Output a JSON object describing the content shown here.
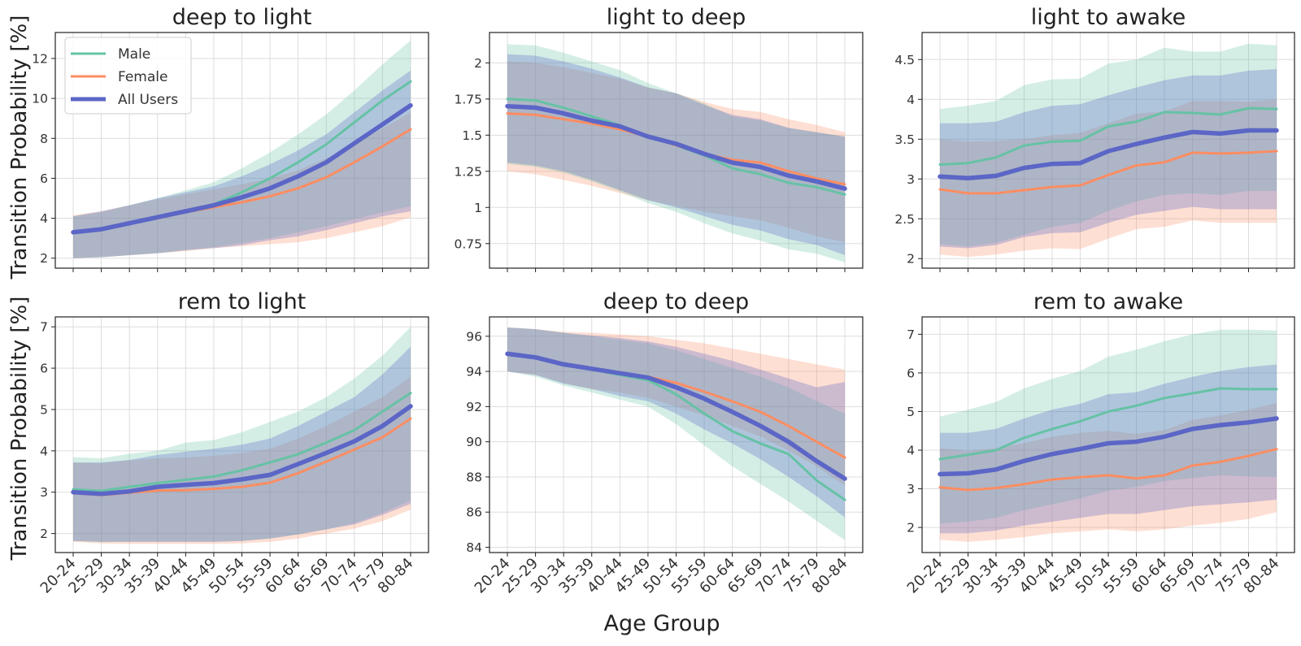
{
  "figure": {
    "ylabel": "Transition Probability [%]",
    "xlabel": "Age Group"
  },
  "colors": {
    "male": "#66c2a5",
    "female": "#fc8d62",
    "all": "#5b66c6"
  },
  "legend": {
    "placement": "upper-left of first panel",
    "entries": [
      {
        "key": "male",
        "label": "Male"
      },
      {
        "key": "female",
        "label": "Female"
      },
      {
        "key": "all",
        "label": "All Users"
      }
    ]
  },
  "chart_data": [
    {
      "type": "line",
      "title": "deep to light",
      "categories": [
        "20-24",
        "25-29",
        "30-34",
        "35-39",
        "40-44",
        "45-49",
        "50-54",
        "55-59",
        "60-64",
        "65-69",
        "70-74",
        "75-79",
        "80-84"
      ],
      "ylim": [
        1.5,
        13.3
      ],
      "yticks": [
        2,
        4,
        6,
        8,
        10,
        12
      ],
      "grid": true,
      "series": [
        {
          "name": "Male",
          "key": "male",
          "values": [
            3.3,
            3.45,
            3.75,
            4.05,
            4.35,
            4.7,
            5.3,
            6.0,
            6.8,
            7.7,
            8.8,
            9.9,
            10.85
          ],
          "lower": [
            2.0,
            2.05,
            2.15,
            2.25,
            2.4,
            2.55,
            2.75,
            3.0,
            3.3,
            3.6,
            3.95,
            4.3,
            4.6
          ],
          "upper": [
            4.1,
            4.3,
            4.65,
            5.0,
            5.4,
            5.8,
            6.5,
            7.3,
            8.2,
            9.2,
            10.4,
            11.7,
            12.9
          ]
        },
        {
          "name": "Female",
          "key": "female",
          "values": [
            3.3,
            3.45,
            3.75,
            4.0,
            4.3,
            4.55,
            4.8,
            5.1,
            5.5,
            6.05,
            6.8,
            7.6,
            8.45
          ],
          "lower": [
            2.0,
            2.05,
            2.15,
            2.25,
            2.35,
            2.5,
            2.6,
            2.7,
            2.8,
            3.0,
            3.3,
            3.6,
            4.05
          ],
          "upper": [
            4.15,
            4.35,
            4.65,
            4.95,
            5.2,
            5.45,
            5.7,
            6.0,
            6.4,
            7.0,
            7.7,
            8.5,
            9.3
          ]
        },
        {
          "name": "All Users",
          "key": "all",
          "values": [
            3.3,
            3.45,
            3.75,
            4.05,
            4.35,
            4.65,
            5.05,
            5.5,
            6.1,
            6.8,
            7.75,
            8.7,
            9.65
          ],
          "lower": [
            2.0,
            2.05,
            2.15,
            2.25,
            2.4,
            2.5,
            2.65,
            2.9,
            3.1,
            3.4,
            3.75,
            4.1,
            4.35
          ],
          "upper": [
            4.1,
            4.35,
            4.65,
            5.0,
            5.3,
            5.6,
            6.1,
            6.7,
            7.4,
            8.2,
            9.3,
            10.4,
            11.4
          ]
        }
      ]
    },
    {
      "type": "line",
      "title": "light to deep",
      "categories": [
        "20-24",
        "25-29",
        "30-34",
        "35-39",
        "40-44",
        "45-49",
        "50-54",
        "55-59",
        "60-64",
        "65-69",
        "70-74",
        "75-79",
        "80-84"
      ],
      "ylim": [
        0.58,
        2.21
      ],
      "yticks": [
        0.75,
        1.0,
        1.25,
        1.5,
        1.75,
        2.0
      ],
      "grid": true,
      "series": [
        {
          "name": "Male",
          "key": "male",
          "values": [
            1.75,
            1.74,
            1.69,
            1.63,
            1.57,
            1.49,
            1.43,
            1.36,
            1.27,
            1.23,
            1.17,
            1.14,
            1.09
          ],
          "lower": [
            1.3,
            1.28,
            1.24,
            1.18,
            1.11,
            1.03,
            0.97,
            0.89,
            0.82,
            0.77,
            0.71,
            0.68,
            0.62
          ],
          "upper": [
            2.13,
            2.12,
            2.07,
            2.01,
            1.95,
            1.86,
            1.79,
            1.72,
            1.63,
            1.6,
            1.55,
            1.52,
            1.49
          ]
        },
        {
          "name": "Female",
          "key": "female",
          "values": [
            1.65,
            1.64,
            1.61,
            1.58,
            1.54,
            1.49,
            1.43,
            1.37,
            1.33,
            1.31,
            1.25,
            1.2,
            1.16
          ],
          "lower": [
            1.25,
            1.23,
            1.19,
            1.15,
            1.1,
            1.05,
            1.01,
            0.97,
            0.94,
            0.91,
            0.86,
            0.8,
            0.76
          ],
          "upper": [
            2.01,
            2.0,
            1.97,
            1.93,
            1.89,
            1.83,
            1.79,
            1.73,
            1.68,
            1.66,
            1.61,
            1.57,
            1.52
          ]
        },
        {
          "name": "All Users",
          "key": "all",
          "values": [
            1.7,
            1.69,
            1.65,
            1.6,
            1.56,
            1.49,
            1.44,
            1.37,
            1.31,
            1.28,
            1.22,
            1.18,
            1.13
          ],
          "lower": [
            1.31,
            1.29,
            1.25,
            1.19,
            1.12,
            1.05,
            1.0,
            0.94,
            0.88,
            0.84,
            0.78,
            0.74,
            0.67
          ],
          "upper": [
            2.06,
            2.05,
            2.01,
            1.96,
            1.9,
            1.83,
            1.79,
            1.71,
            1.64,
            1.61,
            1.55,
            1.52,
            1.49
          ]
        }
      ]
    },
    {
      "type": "line",
      "title": "light to awake",
      "categories": [
        "20-24",
        "25-29",
        "30-34",
        "35-39",
        "40-44",
        "45-49",
        "50-54",
        "55-59",
        "60-64",
        "65-69",
        "70-74",
        "75-79",
        "80-84"
      ],
      "ylim": [
        1.88,
        4.84
      ],
      "yticks": [
        2.0,
        2.5,
        3.0,
        3.5,
        4.0,
        4.5
      ],
      "grid": true,
      "series": [
        {
          "name": "Male",
          "key": "male",
          "values": [
            3.18,
            3.2,
            3.27,
            3.42,
            3.47,
            3.48,
            3.66,
            3.72,
            3.84,
            3.83,
            3.81,
            3.89,
            3.88
          ],
          "lower": [
            2.18,
            2.15,
            2.2,
            2.3,
            2.4,
            2.45,
            2.6,
            2.72,
            2.8,
            2.82,
            2.8,
            2.85,
            2.85
          ],
          "upper": [
            3.88,
            3.92,
            3.98,
            4.18,
            4.25,
            4.26,
            4.45,
            4.5,
            4.65,
            4.6,
            4.6,
            4.7,
            4.68
          ]
        },
        {
          "name": "Female",
          "key": "female",
          "values": [
            2.87,
            2.82,
            2.82,
            2.86,
            2.9,
            2.92,
            3.05,
            3.17,
            3.21,
            3.33,
            3.32,
            3.33,
            3.35
          ],
          "lower": [
            2.05,
            2.02,
            2.05,
            2.1,
            2.13,
            2.12,
            2.25,
            2.37,
            2.4,
            2.48,
            2.45,
            2.45,
            2.45
          ],
          "upper": [
            3.5,
            3.47,
            3.48,
            3.5,
            3.55,
            3.58,
            3.7,
            3.82,
            3.85,
            3.98,
            3.98,
            3.97,
            4.0
          ]
        },
        {
          "name": "All Users",
          "key": "all",
          "values": [
            3.03,
            3.01,
            3.04,
            3.14,
            3.19,
            3.2,
            3.35,
            3.44,
            3.52,
            3.59,
            3.57,
            3.61,
            3.61
          ],
          "lower": [
            2.15,
            2.13,
            2.17,
            2.27,
            2.32,
            2.33,
            2.45,
            2.55,
            2.6,
            2.65,
            2.62,
            2.62,
            2.62
          ],
          "upper": [
            3.7,
            3.7,
            3.72,
            3.84,
            3.92,
            3.94,
            4.05,
            4.15,
            4.24,
            4.3,
            4.3,
            4.36,
            4.38
          ]
        }
      ]
    },
    {
      "type": "line",
      "title": "rem to light",
      "categories": [
        "20-24",
        "25-29",
        "30-34",
        "35-39",
        "40-44",
        "45-49",
        "50-54",
        "55-59",
        "60-64",
        "65-69",
        "70-74",
        "75-79",
        "80-84"
      ],
      "ylim": [
        1.54,
        7.24
      ],
      "yticks": [
        2,
        3,
        4,
        5,
        6,
        7
      ],
      "grid": true,
      "series": [
        {
          "name": "Male",
          "key": "male",
          "values": [
            3.07,
            3.03,
            3.13,
            3.22,
            3.3,
            3.38,
            3.53,
            3.72,
            3.92,
            4.2,
            4.5,
            4.95,
            5.4
          ],
          "lower": [
            1.82,
            1.79,
            1.8,
            1.8,
            1.8,
            1.8,
            1.82,
            1.88,
            1.98,
            2.1,
            2.25,
            2.5,
            2.8
          ],
          "upper": [
            3.85,
            3.82,
            3.93,
            4.0,
            4.2,
            4.26,
            4.45,
            4.7,
            4.95,
            5.3,
            5.75,
            6.3,
            7.0
          ]
        },
        {
          "name": "Female",
          "key": "female",
          "values": [
            2.98,
            2.93,
            2.99,
            3.04,
            3.05,
            3.08,
            3.13,
            3.23,
            3.46,
            3.74,
            4.03,
            4.33,
            4.78
          ],
          "lower": [
            1.8,
            1.76,
            1.75,
            1.75,
            1.75,
            1.75,
            1.76,
            1.8,
            1.88,
            2.0,
            2.12,
            2.3,
            2.58
          ],
          "upper": [
            3.72,
            3.7,
            3.77,
            3.82,
            3.84,
            3.88,
            3.95,
            4.05,
            4.3,
            4.6,
            4.95,
            5.3,
            5.8
          ]
        },
        {
          "name": "All Users",
          "key": "all",
          "values": [
            3.0,
            2.96,
            3.02,
            3.13,
            3.18,
            3.22,
            3.31,
            3.42,
            3.68,
            3.95,
            4.23,
            4.6,
            5.08
          ],
          "lower": [
            1.82,
            1.8,
            1.8,
            1.8,
            1.8,
            1.8,
            1.82,
            1.88,
            1.98,
            2.1,
            2.22,
            2.45,
            2.72
          ],
          "upper": [
            3.72,
            3.72,
            3.78,
            3.9,
            3.98,
            4.05,
            4.15,
            4.3,
            4.6,
            4.95,
            5.3,
            5.85,
            6.52
          ]
        }
      ]
    },
    {
      "type": "line",
      "title": "deep to deep",
      "categories": [
        "20-24",
        "25-29",
        "30-34",
        "35-39",
        "40-44",
        "45-49",
        "50-54",
        "55-59",
        "60-64",
        "65-69",
        "70-74",
        "75-79",
        "80-84"
      ],
      "ylim": [
        83.7,
        97.1
      ],
      "yticks": [
        84,
        86,
        88,
        90,
        92,
        94,
        96
      ],
      "grid": true,
      "series": [
        {
          "name": "Male",
          "key": "male",
          "values": [
            95.0,
            94.8,
            94.4,
            94.1,
            93.8,
            93.5,
            92.7,
            91.6,
            90.6,
            89.9,
            89.3,
            87.8,
            86.7
          ],
          "lower": [
            94.0,
            93.7,
            93.2,
            92.8,
            92.4,
            92.0,
            91.0,
            89.8,
            88.6,
            87.6,
            86.6,
            85.5,
            84.4
          ],
          "upper": [
            96.5,
            96.4,
            96.2,
            96.0,
            95.8,
            95.6,
            95.2,
            94.7,
            94.2,
            93.7,
            93.1,
            92.3,
            91.6
          ]
        },
        {
          "name": "Female",
          "key": "female",
          "values": [
            95.0,
            94.8,
            94.4,
            94.15,
            93.95,
            93.7,
            93.35,
            92.85,
            92.3,
            91.7,
            90.9,
            90.0,
            89.1
          ],
          "lower": [
            94.0,
            93.8,
            93.35,
            93.0,
            92.8,
            92.5,
            92.0,
            91.5,
            90.9,
            90.3,
            89.5,
            88.6,
            87.5
          ],
          "upper": [
            96.5,
            96.4,
            96.25,
            96.2,
            96.1,
            96.0,
            95.8,
            95.6,
            95.3,
            95.0,
            94.7,
            94.4,
            94.1
          ]
        },
        {
          "name": "All Users",
          "key": "all",
          "values": [
            95.0,
            94.8,
            94.4,
            94.15,
            93.9,
            93.65,
            93.1,
            92.45,
            91.7,
            90.9,
            90.0,
            88.9,
            87.9
          ],
          "lower": [
            94.0,
            93.8,
            93.3,
            93.0,
            92.6,
            92.3,
            91.6,
            90.7,
            89.9,
            89.0,
            88.0,
            86.9,
            85.7
          ],
          "upper": [
            96.5,
            96.4,
            96.2,
            96.05,
            95.9,
            95.7,
            95.4,
            95.0,
            94.6,
            94.1,
            93.6,
            93.1,
            93.4
          ]
        }
      ]
    },
    {
      "type": "line",
      "title": "rem to awake",
      "categories": [
        "20-24",
        "25-29",
        "30-34",
        "35-39",
        "40-44",
        "45-49",
        "50-54",
        "55-59",
        "60-64",
        "65-69",
        "70-74",
        "75-79",
        "80-84"
      ],
      "ylim": [
        1.35,
        7.45
      ],
      "yticks": [
        2,
        3,
        4,
        5,
        6,
        7
      ],
      "grid": true,
      "series": [
        {
          "name": "Male",
          "key": "male",
          "values": [
            3.77,
            3.88,
            4.0,
            4.32,
            4.55,
            4.75,
            5.0,
            5.15,
            5.35,
            5.47,
            5.6,
            5.58,
            5.58
          ],
          "lower": [
            2.1,
            2.15,
            2.25,
            2.45,
            2.6,
            2.75,
            2.95,
            3.05,
            3.2,
            3.28,
            3.35,
            3.32,
            3.3
          ],
          "upper": [
            4.87,
            5.05,
            5.25,
            5.6,
            5.85,
            6.05,
            6.42,
            6.6,
            6.82,
            7.0,
            7.12,
            7.12,
            7.1
          ]
        },
        {
          "name": "Female",
          "key": "female",
          "values": [
            3.04,
            2.97,
            3.02,
            3.12,
            3.24,
            3.3,
            3.35,
            3.27,
            3.35,
            3.6,
            3.7,
            3.85,
            4.03
          ],
          "lower": [
            1.68,
            1.63,
            1.68,
            1.75,
            1.85,
            1.9,
            1.95,
            1.9,
            1.95,
            2.05,
            2.12,
            2.22,
            2.4
          ],
          "upper": [
            4.05,
            3.98,
            4.05,
            4.18,
            4.35,
            4.45,
            4.5,
            4.42,
            4.52,
            4.78,
            4.9,
            5.05,
            5.22
          ]
        },
        {
          "name": "All Users",
          "key": "all",
          "values": [
            3.38,
            3.4,
            3.5,
            3.72,
            3.9,
            4.03,
            4.18,
            4.22,
            4.35,
            4.55,
            4.65,
            4.72,
            4.82
          ],
          "lower": [
            1.85,
            1.85,
            1.92,
            2.05,
            2.15,
            2.25,
            2.35,
            2.35,
            2.45,
            2.55,
            2.6,
            2.65,
            2.72
          ],
          "upper": [
            4.45,
            4.45,
            4.55,
            4.82,
            5.05,
            5.2,
            5.45,
            5.5,
            5.72,
            5.9,
            6.05,
            6.15,
            6.22
          ]
        }
      ]
    }
  ]
}
